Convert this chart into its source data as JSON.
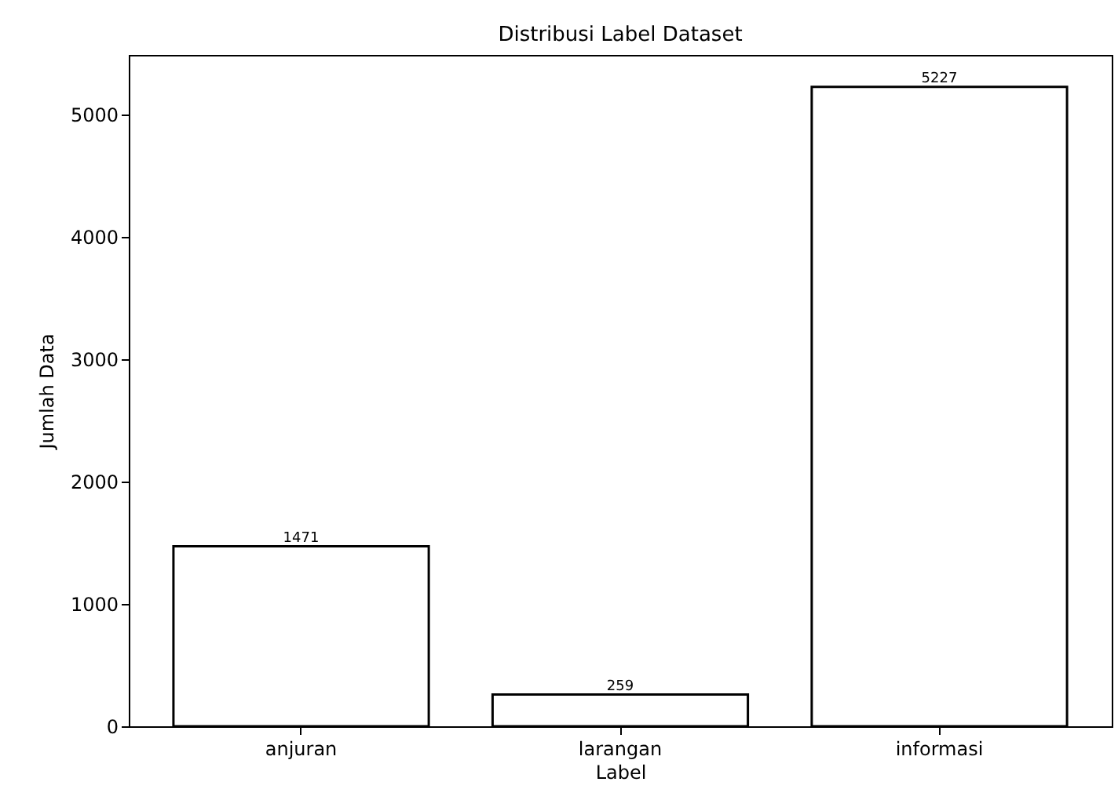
{
  "chart_data": {
    "type": "bar",
    "title": "Distribusi Label Dataset",
    "xlabel": "Label",
    "ylabel": "Jumlah Data",
    "categories": [
      "anjuran",
      "larangan",
      "informasi"
    ],
    "values": [
      1471,
      259,
      5227
    ],
    "color": "#ffffff",
    "ylim": [
      0,
      5488
    ],
    "yticks": [
      0,
      1000,
      2000,
      3000,
      4000,
      5000
    ],
    "data_labels": true
  }
}
